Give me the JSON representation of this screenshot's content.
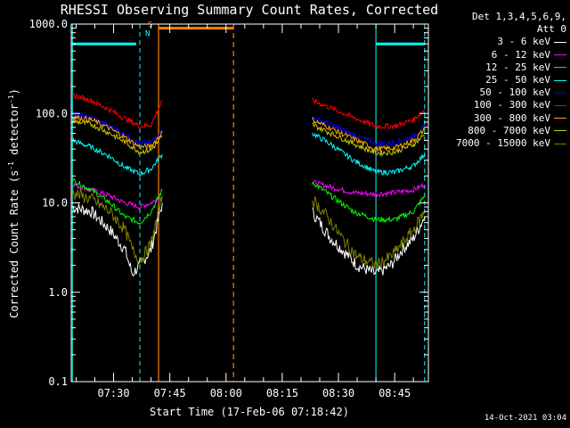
{
  "chart_data": {
    "type": "line",
    "title": "RHESSI Observing Summary Count Rates, Corrected",
    "xlabel": "Start Time (17-Feb-06 07:18:42)",
    "ylabel": "Corrected Count Rate (s⁻¹ detector⁻¹)",
    "ylabel_parts": [
      "Corrected Count Rate (s",
      "-1",
      " detector",
      "-1",
      ")"
    ],
    "yscale": "log",
    "ylim": [
      0.1,
      1000
    ],
    "xlim": [
      "07:18:42",
      "08:54:00"
    ],
    "yticks": [
      "0.1",
      "1.0",
      "10.0",
      "100.0",
      "1000.0"
    ],
    "xticks": [
      "07:30",
      "07:45",
      "08:00",
      "08:15",
      "08:30",
      "08:45"
    ],
    "legend_header": [
      "Det 1,3,4,5,6,9,",
      "Att 0"
    ],
    "legend_position": "right",
    "series": [
      {
        "name": "3 - 6 keV",
        "color": "#ffffff",
        "x": [
          "07:19",
          "07:24",
          "07:29",
          "07:33",
          "07:35",
          "07:37",
          "07:40",
          "07:43",
          "08:23",
          "08:25",
          "08:28",
          "08:31",
          "08:35",
          "08:40",
          "08:44",
          "08:47",
          "08:50",
          "08:53"
        ],
        "y": [
          9,
          8,
          5,
          3,
          1.6,
          2,
          3,
          10,
          8,
          6,
          4,
          3,
          2,
          1.6,
          2,
          3,
          4,
          7
        ]
      },
      {
        "name": "6 - 12 keV",
        "color": "#ff00ff",
        "x": [
          "07:19",
          "07:24",
          "07:29",
          "07:33",
          "07:37",
          "07:40",
          "07:43",
          "08:23",
          "08:28",
          "08:34",
          "08:40",
          "08:45",
          "08:50",
          "08:53"
        ],
        "y": [
          16,
          14,
          12,
          10,
          9,
          10,
          12,
          17,
          15,
          13,
          12.5,
          13,
          14,
          16
        ]
      },
      {
        "name": "12 - 25 keV",
        "color": "#00ff00",
        "x": [
          "07:19",
          "07:24",
          "07:29",
          "07:33",
          "07:37",
          "07:40",
          "07:43",
          "08:23",
          "08:28",
          "08:34",
          "08:40",
          "08:45",
          "08:50",
          "08:53"
        ],
        "y": [
          18,
          14,
          10,
          7,
          6,
          8,
          14,
          17,
          12,
          8,
          6.5,
          6.5,
          8,
          12
        ]
      },
      {
        "name": "25 - 50 keV",
        "color": "#00ffff",
        "x": [
          "07:19",
          "07:24",
          "07:29",
          "07:33",
          "07:37",
          "07:40",
          "07:43",
          "08:23",
          "08:28",
          "08:34",
          "08:40",
          "08:45",
          "08:50",
          "08:53"
        ],
        "y": [
          50,
          42,
          33,
          25,
          21,
          24,
          35,
          60,
          45,
          30,
          22,
          22,
          26,
          35
        ]
      },
      {
        "name": "50 - 100 keV",
        "color": "#0000ff",
        "x": [
          "07:19",
          "07:24",
          "07:29",
          "07:33",
          "07:37",
          "07:40",
          "07:43",
          "08:23",
          "08:28",
          "08:34",
          "08:40",
          "08:45",
          "08:50",
          "08:53"
        ],
        "y": [
          100,
          90,
          72,
          58,
          46,
          48,
          65,
          90,
          75,
          58,
          46,
          47,
          56,
          72
        ]
      },
      {
        "name": "100 - 300 keV",
        "color": "#ff0000",
        "x": [
          "07:19",
          "07:24",
          "07:29",
          "07:33",
          "07:37",
          "07:40",
          "07:43",
          "08:23",
          "08:28",
          "08:34",
          "08:40",
          "08:45",
          "08:50",
          "08:53"
        ],
        "y": [
          160,
          140,
          110,
          88,
          72,
          75,
          140,
          140,
          115,
          90,
          72,
          72,
          85,
          110
        ]
      },
      {
        "name": "300 - 800 keV",
        "color": "#ffa500",
        "x": [
          "07:19",
          "07:24",
          "07:29",
          "07:33",
          "07:37",
          "07:40",
          "07:43",
          "08:23",
          "08:28",
          "08:34",
          "08:40",
          "08:45",
          "08:50",
          "08:53"
        ],
        "y": [
          92,
          85,
          68,
          54,
          42,
          43,
          62,
          85,
          68,
          52,
          40,
          41,
          50,
          66
        ]
      },
      {
        "name": "800 - 7000 keV",
        "color": "#cccc00",
        "x": [
          "07:19",
          "07:24",
          "07:29",
          "07:33",
          "07:37",
          "07:40",
          "07:43",
          "08:23",
          "08:28",
          "08:34",
          "08:40",
          "08:45",
          "08:50",
          "08:53"
        ],
        "y": [
          82,
          76,
          60,
          48,
          37,
          39,
          55,
          75,
          60,
          46,
          36,
          37,
          45,
          58
        ]
      },
      {
        "name": "7000 - 15000 keV",
        "color": "#808000",
        "x": [
          "07:19",
          "07:24",
          "07:29",
          "07:33",
          "07:35",
          "07:37",
          "07:40",
          "07:43",
          "08:23",
          "08:27",
          "08:31",
          "08:35",
          "08:40",
          "08:44",
          "08:47",
          "08:50",
          "08:53"
        ],
        "y": [
          13,
          11,
          8,
          5,
          3,
          2.2,
          3.5,
          12,
          11,
          7,
          4,
          2.5,
          2,
          2.5,
          3.5,
          5,
          8
        ]
      }
    ],
    "annotations": {
      "solid_cyan_lines": [
        "07:19",
        "08:40"
      ],
      "dashed_cyan_lines": [
        "07:37",
        "08:53"
      ],
      "solid_orange_line": "07:42",
      "dashed_orange_line": "08:02",
      "cyan_bars": [
        [
          "07:19",
          "07:36"
        ],
        [
          "08:40",
          "08:53"
        ]
      ],
      "orange_bar": [
        "07:42",
        "08:02"
      ],
      "s_marker": "S",
      "n_marker": "N",
      "bar_level": 600
    },
    "timestamp": "14-Oct-2021 03:04"
  }
}
